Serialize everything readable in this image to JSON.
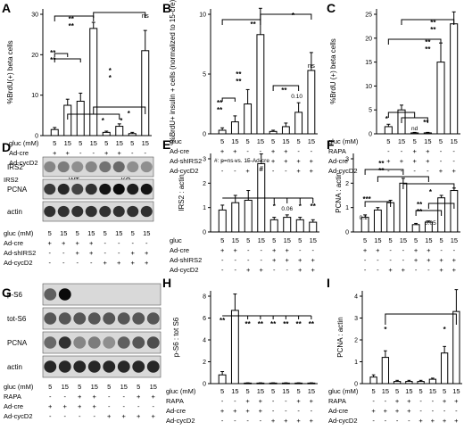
{
  "panels": [
    {
      "letter": "A",
      "ylabel": "%BrdU(+) beta cells",
      "yticks": [
        "0",
        "10",
        "20",
        "30"
      ],
      "rows": [
        {
          "label": "gluc (mM)",
          "symbols": [
            "5",
            "15",
            "5",
            "15",
            "5",
            "15",
            "5",
            "15"
          ]
        },
        {
          "label": "Ad-cre",
          "symbols": [
            "+",
            "+",
            "-",
            "-",
            "+",
            "+",
            "-",
            "-"
          ]
        },
        {
          "label": "Ad-cycD2",
          "symbols": [
            "-",
            "-",
            "+",
            "+",
            "-",
            "-",
            "+",
            "+"
          ]
        }
      ],
      "group_label": "IRS2",
      "groups": [
        "WT",
        "KO"
      ],
      "annotations": [
        "**",
        "**",
        "**",
        "**",
        "*",
        "*",
        "ns",
        "*",
        "*",
        "*"
      ]
    },
    {
      "letter": "B",
      "ylabel": "%BrdU+ insulin + cells (normalized to 15-cre)",
      "yticks": [
        "0",
        "5",
        "10"
      ],
      "rows": [
        {
          "label": "gluc",
          "symbols": [
            "5",
            "15",
            "5",
            "15",
            "5",
            "15",
            "5",
            "15"
          ]
        },
        {
          "label": "Ad-cre",
          "symbols": [
            "+",
            "+",
            "-",
            "-",
            "+",
            "+",
            "-",
            "-"
          ]
        },
        {
          "label": "Ad-shIRS2",
          "symbols": [
            "-",
            "-",
            "-",
            "-",
            "+",
            "+",
            "+",
            "+"
          ]
        },
        {
          "label": "Ad-cycD2",
          "symbols": [
            "-",
            "-",
            "+",
            "+",
            "-",
            "-",
            "+",
            "+"
          ]
        }
      ],
      "annotations": [
        "**",
        "**",
        "**",
        "**",
        "**",
        "**",
        "ns",
        "0.10",
        "*"
      ]
    },
    {
      "letter": "C",
      "ylabel": "%BrdU (+) beta cells",
      "yticks": [
        "0",
        "5",
        "10",
        "15",
        "20",
        "25"
      ],
      "rows": [
        {
          "label": "gluc (mM)",
          "symbols": [
            "5",
            "15",
            "5",
            "15",
            "5",
            "15"
          ]
        },
        {
          "label": "RAPA",
          "symbols": [
            "-",
            "-",
            "+",
            "+",
            "-",
            "-"
          ]
        },
        {
          "label": "Ad-cre",
          "symbols": [
            "+",
            "+",
            "+",
            "+",
            "-",
            "-"
          ]
        },
        {
          "label": "Ad-cycD2",
          "symbols": [
            "-",
            "-",
            "-",
            "-",
            "+",
            "+"
          ]
        }
      ],
      "annotations": [
        "**",
        "**",
        "**",
        "**",
        "*",
        "nd",
        "**"
      ]
    },
    {
      "letter": "D",
      "blots": [
        "IRS2",
        "PCNA",
        "actin"
      ],
      "rows": [
        {
          "label": "gluc (mM)",
          "symbols": [
            "5",
            "15",
            "5",
            "15",
            "5",
            "15",
            "5",
            "15"
          ]
        },
        {
          "label": "Ad-cre",
          "symbols": [
            "+",
            "+",
            "+",
            "+",
            "-",
            "-",
            "-",
            "-"
          ]
        },
        {
          "label": "Ad-shIRS2",
          "symbols": [
            "-",
            "-",
            "+",
            "+",
            "-",
            "-",
            "+",
            "+"
          ]
        },
        {
          "label": "Ad-cycD2",
          "symbols": [
            "-",
            "-",
            "-",
            "-",
            "+",
            "+",
            "+",
            "+"
          ]
        }
      ]
    },
    {
      "letter": "E",
      "ylabel": "IRS2 : actin",
      "yticks": [
        "0",
        "1",
        "2",
        "3"
      ],
      "note": "#: p=ns vs. 15-Ad-cre",
      "rows": [
        {
          "label": "gluc",
          "symbols": [
            "5",
            "15",
            "5",
            "15",
            "5",
            "15",
            "5",
            "15"
          ]
        },
        {
          "label": "Ad-cre",
          "symbols": [
            "+",
            "+",
            "-",
            "-",
            "+",
            "+",
            "-",
            "-"
          ]
        },
        {
          "label": "Ad-shIRS2",
          "symbols": [
            "-",
            "-",
            "-",
            "-",
            "+",
            "+",
            "+",
            "+"
          ]
        },
        {
          "label": "Ad-cycD2",
          "symbols": [
            "-",
            "-",
            "+",
            "+",
            "-",
            "-",
            "+",
            "+"
          ]
        }
      ],
      "annotations": [
        "#",
        "*",
        "0.06",
        "*",
        "**"
      ]
    },
    {
      "letter": "F",
      "ylabel": "PCNA : actin",
      "yticks": [
        "0",
        "1",
        "2",
        "3"
      ],
      "rows": [
        {
          "label": "",
          "symbols": [
            "5",
            "15",
            "5",
            "15",
            "5",
            "15",
            "5",
            "15"
          ]
        },
        {
          "label": "",
          "symbols": [
            "+",
            "+",
            "-",
            "-",
            "+",
            "+",
            "-",
            "-"
          ]
        },
        {
          "label": "",
          "symbols": [
            "-",
            "-",
            "-",
            "-",
            "+",
            "+",
            "+",
            "+"
          ]
        },
        {
          "label": "",
          "symbols": [
            "-",
            "-",
            "+",
            "+",
            "-",
            "-",
            "+",
            "+"
          ]
        }
      ],
      "annotations": [
        "0.1",
        "***",
        "**",
        "**",
        "*",
        "**",
        "**",
        "0.05"
      ]
    },
    {
      "letter": "G",
      "blots": [
        "p-S6",
        "tot-S6",
        "PCNA",
        "actin"
      ],
      "rows": [
        {
          "label": "gluc (mM)",
          "symbols": [
            "5",
            "15",
            "5",
            "15",
            "5",
            "15",
            "5",
            "15"
          ]
        },
        {
          "label": "RAPA",
          "symbols": [
            "-",
            "-",
            "+",
            "+",
            "-",
            "-",
            "+",
            "+"
          ]
        },
        {
          "label": "Ad-cre",
          "symbols": [
            "+",
            "+",
            "+",
            "+",
            "-",
            "-",
            "-",
            "-"
          ]
        },
        {
          "label": "Ad-cycD2",
          "symbols": [
            "-",
            "-",
            "-",
            "-",
            "+",
            "+",
            "+",
            "+"
          ]
        }
      ]
    },
    {
      "letter": "H",
      "ylabel": "p-S6 : tot S6",
      "yticks": [
        "0",
        "2",
        "4",
        "6",
        "8"
      ],
      "rows": [
        {
          "label": "gluc (mM)",
          "symbols": [
            "5",
            "15",
            "5",
            "15",
            "5",
            "15",
            "5",
            "15"
          ]
        },
        {
          "label": "RAPA",
          "symbols": [
            "-",
            "-",
            "+",
            "+",
            "-",
            "-",
            "+",
            "+"
          ]
        },
        {
          "label": "Ad-cre",
          "symbols": [
            "+",
            "+",
            "+",
            "+",
            "-",
            "-",
            "-",
            "-"
          ]
        },
        {
          "label": "Ad-cycD2",
          "symbols": [
            "-",
            "-",
            "-",
            "-",
            "+",
            "+",
            "+",
            "+"
          ]
        }
      ],
      "annotations": [
        "**",
        "**",
        "**",
        "**",
        "**",
        "**",
        "**"
      ]
    },
    {
      "letter": "I",
      "ylabel": "PCNA : actin",
      "yticks": [
        "0",
        "1",
        "2",
        "3",
        "4"
      ],
      "rows": [
        {
          "label": "gluc (mM)",
          "symbols": [
            "5",
            "15",
            "5",
            "15",
            "5",
            "15",
            "5",
            "15"
          ]
        },
        {
          "label": "RAPA",
          "symbols": [
            "-",
            "-",
            "+",
            "+",
            "-",
            "-",
            "+",
            "+"
          ]
        },
        {
          "label": "Ad-cre",
          "symbols": [
            "+",
            "+",
            "+",
            "+",
            "-",
            "-",
            "-",
            "-"
          ]
        },
        {
          "label": "Ad-cycD2",
          "symbols": [
            "-",
            "-",
            "-",
            "-",
            "+",
            "+",
            "+",
            "+"
          ]
        }
      ],
      "annotations": [
        "*",
        "*"
      ]
    }
  ],
  "chart_data": [
    {
      "panel": "A",
      "type": "bar",
      "ylabel": "%BrdU(+) beta cells",
      "ylim": [
        0,
        30
      ],
      "values": [
        1.5,
        7.5,
        8.5,
        26.5,
        0.8,
        2.3,
        0.5,
        21
      ],
      "errors": [
        0.5,
        1.5,
        2,
        1.5,
        0.3,
        0.6,
        0.3,
        5
      ]
    },
    {
      "panel": "B",
      "type": "bar",
      "ylabel": "%BrdU+ insulin + cells (normalized to 15-cre)",
      "ylim": [
        0,
        10
      ],
      "values": [
        0.3,
        1,
        2.5,
        8.3,
        0.2,
        0.6,
        1.8,
        5.3
      ],
      "errors": [
        0.2,
        0.5,
        1.2,
        2.2,
        0.1,
        0.3,
        0.8,
        1.5
      ]
    },
    {
      "panel": "C",
      "type": "bar",
      "ylabel": "%BrdU (+) beta cells",
      "ylim": [
        0,
        25
      ],
      "values": [
        1.5,
        5,
        0.2,
        0.2,
        15,
        23
      ],
      "errors": [
        0.5,
        1,
        0.1,
        0.1,
        4,
        2.5
      ]
    },
    {
      "panel": "E",
      "type": "bar",
      "ylabel": "IRS2 : actin",
      "ylim": [
        0,
        3
      ],
      "values": [
        0.9,
        1.2,
        1.3,
        2.8,
        0.5,
        0.6,
        0.5,
        0.4
      ],
      "errors": [
        0.2,
        0.3,
        0.4,
        0.4,
        0.1,
        0.1,
        0.1,
        0.1
      ]
    },
    {
      "panel": "F",
      "type": "bar",
      "ylabel": "PCNA : actin",
      "ylim": [
        0,
        3
      ],
      "values": [
        0.6,
        0.9,
        1.2,
        2.0,
        0.3,
        0.4,
        1.4,
        1.7
      ],
      "errors": [
        0.1,
        0.1,
        0.1,
        0.2,
        0.05,
        0.05,
        0.1,
        0.1
      ]
    },
    {
      "panel": "H",
      "type": "bar",
      "ylabel": "p-S6 : tot S6",
      "ylim": [
        0,
        8
      ],
      "values": [
        0.8,
        6.7,
        0.05,
        0.05,
        0.05,
        0.05,
        0.05,
        0.05
      ],
      "errors": [
        0.3,
        1.5,
        0.02,
        0.02,
        0.02,
        0.02,
        0.02,
        0.02
      ]
    },
    {
      "panel": "I",
      "type": "bar",
      "ylabel": "PCNA : actin",
      "ylim": [
        0,
        4
      ],
      "values": [
        0.3,
        1.2,
        0.1,
        0.1,
        0.1,
        0.2,
        1.4,
        3.3
      ],
      "errors": [
        0.1,
        0.3,
        0.05,
        0.05,
        0.05,
        0.05,
        0.3,
        1.0
      ]
    }
  ]
}
